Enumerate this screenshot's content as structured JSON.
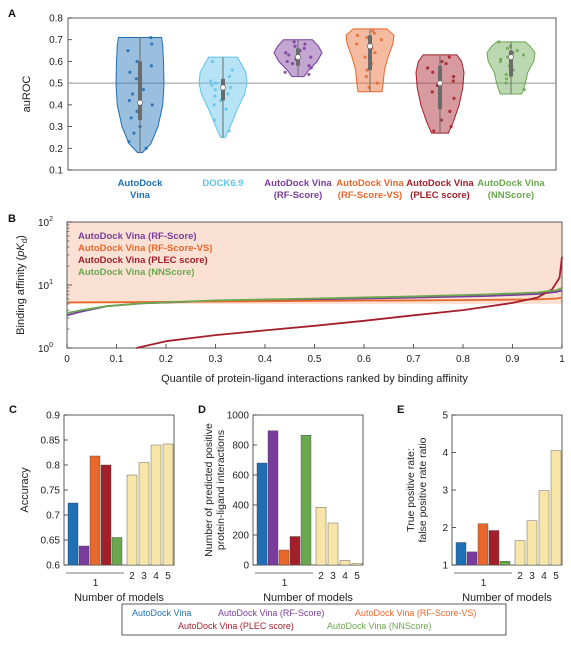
{
  "colors": {
    "vina": "#1f6fb5",
    "dock": "#5ec4ea",
    "rf": "#7a3c9c",
    "rfvs": "#e8682c",
    "plec": "#a31f2a",
    "nn": "#6aa84f",
    "combo": "#f8e6a8",
    "band": "#fbe1d3",
    "grid": "#999999",
    "axis": "#333333"
  },
  "chart_data": [
    {
      "panel": "A",
      "type": "violin",
      "ylabel": "auROC",
      "ylim": [
        0.1,
        0.8
      ],
      "yticks": [
        0.1,
        0.2,
        0.3,
        0.4,
        0.5,
        0.6,
        0.7,
        0.8
      ],
      "reference_line": 0.5,
      "categories": [
        {
          "line1": "AutoDock",
          "line2": "Vina",
          "color_key": "vina",
          "min": 0.18,
          "max": 0.71,
          "median": 0.41,
          "q1": 0.33,
          "q3": 0.6,
          "profile": [
            [
              0.18,
              0.1
            ],
            [
              0.22,
              0.45
            ],
            [
              0.3,
              0.75
            ],
            [
              0.4,
              0.95
            ],
            [
              0.5,
              1.0
            ],
            [
              0.6,
              0.98
            ],
            [
              0.67,
              0.95
            ],
            [
              0.71,
              0.9
            ]
          ],
          "points": [
            0.71,
            0.68,
            0.65,
            0.6,
            0.58,
            0.55,
            0.52,
            0.5,
            0.47,
            0.45,
            0.42,
            0.4,
            0.37,
            0.34,
            0.3,
            0.27,
            0.23,
            0.2
          ]
        },
        {
          "line1": "DOCK6.9",
          "line2": "",
          "color_key": "dock",
          "min": 0.25,
          "max": 0.62,
          "median": 0.48,
          "q1": 0.42,
          "q3": 0.52,
          "profile": [
            [
              0.25,
              0.1
            ],
            [
              0.3,
              0.3
            ],
            [
              0.38,
              0.6
            ],
            [
              0.45,
              0.9
            ],
            [
              0.5,
              1.0
            ],
            [
              0.55,
              0.95
            ],
            [
              0.6,
              0.7
            ],
            [
              0.62,
              0.6
            ]
          ],
          "points": [
            0.6,
            0.56,
            0.53,
            0.51,
            0.5,
            0.49,
            0.48,
            0.47,
            0.46,
            0.45,
            0.44,
            0.42,
            0.4,
            0.38,
            0.33,
            0.28
          ]
        },
        {
          "line1": "AutoDock Vina",
          "line2": "(RF-Score)",
          "color_key": "rf",
          "min": 0.53,
          "max": 0.7,
          "median": 0.62,
          "q1": 0.58,
          "q3": 0.66,
          "profile": [
            [
              0.53,
              0.25
            ],
            [
              0.56,
              0.45
            ],
            [
              0.6,
              0.8
            ],
            [
              0.64,
              1.0
            ],
            [
              0.67,
              0.85
            ],
            [
              0.7,
              0.6
            ]
          ],
          "points": [
            0.69,
            0.68,
            0.67,
            0.66,
            0.65,
            0.64,
            0.63,
            0.62,
            0.61,
            0.6,
            0.59,
            0.58,
            0.57,
            0.55,
            0.54
          ]
        },
        {
          "line1": "AutoDock Vina",
          "line2": "(RF-Score-VS)",
          "color_key": "rfvs",
          "min": 0.46,
          "max": 0.75,
          "median": 0.67,
          "q1": 0.56,
          "q3": 0.72,
          "profile": [
            [
              0.46,
              0.5
            ],
            [
              0.5,
              0.55
            ],
            [
              0.56,
              0.6
            ],
            [
              0.62,
              0.75
            ],
            [
              0.68,
              0.95
            ],
            [
              0.72,
              1.0
            ],
            [
              0.75,
              0.7
            ]
          ],
          "points": [
            0.74,
            0.73,
            0.72,
            0.71,
            0.7,
            0.68,
            0.66,
            0.64,
            0.62,
            0.59,
            0.56,
            0.53,
            0.5,
            0.48
          ]
        },
        {
          "line1": "AutoDock Vina",
          "line2": "(PLEC score)",
          "color_key": "plec",
          "min": 0.27,
          "max": 0.63,
          "median": 0.5,
          "q1": 0.38,
          "q3": 0.58,
          "profile": [
            [
              0.27,
              0.35
            ],
            [
              0.32,
              0.55
            ],
            [
              0.4,
              0.8
            ],
            [
              0.48,
              0.95
            ],
            [
              0.55,
              1.0
            ],
            [
              0.6,
              0.9
            ],
            [
              0.63,
              0.7
            ]
          ],
          "points": [
            0.62,
            0.6,
            0.59,
            0.57,
            0.55,
            0.53,
            0.51,
            0.49,
            0.46,
            0.43,
            0.4,
            0.37,
            0.33,
            0.3,
            0.28
          ]
        },
        {
          "line1": "AutoDock Vina",
          "line2": "(NNScore)",
          "color_key": "nn",
          "min": 0.45,
          "max": 0.69,
          "median": 0.62,
          "q1": 0.53,
          "q3": 0.65,
          "profile": [
            [
              0.45,
              0.45
            ],
            [
              0.5,
              0.6
            ],
            [
              0.55,
              0.7
            ],
            [
              0.6,
              0.95
            ],
            [
              0.64,
              1.0
            ],
            [
              0.67,
              0.8
            ],
            [
              0.69,
              0.6
            ]
          ],
          "points": [
            0.69,
            0.67,
            0.66,
            0.65,
            0.64,
            0.63,
            0.62,
            0.61,
            0.6,
            0.58,
            0.56,
            0.54,
            0.52,
            0.5,
            0.47
          ]
        }
      ]
    },
    {
      "panel": "B",
      "type": "line",
      "ylabel_pre": "Binding affinity (",
      "ylabel_p": "pK",
      "ylabel_sub": "d",
      "ylabel_post": ")",
      "xlabel": "Quantile of protein-ligand interactions ranked by binding affinity",
      "xlim": [
        0,
        1
      ],
      "xticks": [
        "0",
        "0.1",
        "0.2",
        "0.3",
        "0.4",
        "0.5",
        "0.6",
        "0.7",
        "0.8",
        "0.9",
        "1"
      ],
      "yscale": "log",
      "ylim": [
        1,
        100
      ],
      "yticks": [
        {
          "base": "10",
          "exp": "0",
          "value": 1
        },
        {
          "base": "10",
          "exp": "1",
          "value": 10
        },
        {
          "base": "10",
          "exp": "2",
          "value": 100
        }
      ],
      "shaded_band": [
        5,
        100
      ],
      "legend_position": "top-left",
      "series": [
        {
          "name": "AutoDock Vina (RF-Score)",
          "color_key": "rf",
          "points": [
            [
              0,
              3.3
            ],
            [
              0.03,
              3.8
            ],
            [
              0.08,
              4.6
            ],
            [
              0.15,
              5.1
            ],
            [
              0.3,
              5.6
            ],
            [
              0.5,
              5.9
            ],
            [
              0.7,
              6.3
            ],
            [
              0.85,
              6.7
            ],
            [
              0.95,
              7.2
            ],
            [
              0.99,
              7.8
            ],
            [
              1,
              8.2
            ]
          ]
        },
        {
          "name": "AutoDock Vina (RF-Score-VS)",
          "color_key": "rfvs",
          "points": [
            [
              0,
              5.3
            ],
            [
              0.2,
              5.4
            ],
            [
              0.5,
              5.6
            ],
            [
              0.8,
              5.75
            ],
            [
              0.95,
              5.9
            ],
            [
              0.99,
              6.1
            ],
            [
              1,
              6.3
            ]
          ]
        },
        {
          "name": "AutoDock Vina (PLEC score)",
          "color_key": "plec",
          "points": [
            [
              0.14,
              1.0
            ],
            [
              0.2,
              1.28
            ],
            [
              0.3,
              1.6
            ],
            [
              0.4,
              1.9
            ],
            [
              0.5,
              2.25
            ],
            [
              0.6,
              2.7
            ],
            [
              0.7,
              3.3
            ],
            [
              0.8,
              4.0
            ],
            [
              0.9,
              5.2
            ],
            [
              0.95,
              6.3
            ],
            [
              0.98,
              8.5
            ],
            [
              0.995,
              13
            ],
            [
              1,
              28
            ]
          ]
        },
        {
          "name": "AutoDock Vina (NNScore)",
          "color_key": "nn",
          "points": [
            [
              0,
              3.6
            ],
            [
              0.03,
              4.0
            ],
            [
              0.08,
              4.6
            ],
            [
              0.15,
              5.1
            ],
            [
              0.3,
              5.7
            ],
            [
              0.5,
              6.1
            ],
            [
              0.7,
              6.6
            ],
            [
              0.85,
              7.1
            ],
            [
              0.95,
              7.6
            ],
            [
              0.99,
              8.3
            ],
            [
              1,
              9.0
            ]
          ]
        }
      ]
    },
    {
      "panel": "C",
      "type": "bar",
      "ylabel": "Accuracy",
      "xlabel": "Number of models",
      "ylim": [
        0.6,
        0.9
      ],
      "yticks": [
        "0.6",
        "0.65",
        "0.7",
        "0.75",
        "0.8",
        "0.85",
        "0.9"
      ],
      "group_label": "1",
      "single_values": [
        0.724,
        0.638,
        0.818,
        0.8,
        0.655
      ],
      "combo_categories": [
        "2",
        "3",
        "4",
        "5"
      ],
      "combo_values": [
        0.78,
        0.805,
        0.84,
        0.842
      ]
    },
    {
      "panel": "D",
      "type": "bar",
      "ylabel_line1": "Number of predicted positive",
      "ylabel_line2": "protein-ligand interactions",
      "xlabel": "Number of models",
      "ylim": [
        0,
        1000
      ],
      "yticks": [
        "0",
        "200",
        "400",
        "600",
        "800",
        "1000"
      ],
      "group_label": "1",
      "single_values": [
        680,
        895,
        100,
        190,
        865
      ],
      "combo_categories": [
        "2",
        "3",
        "4",
        "5"
      ],
      "combo_values": [
        385,
        280,
        30,
        10
      ]
    },
    {
      "panel": "E",
      "type": "bar",
      "ylabel_line1": "True positive rate:",
      "ylabel_line2": "false positive rate ratio",
      "xlabel": "Number of models",
      "ylim": [
        1,
        5
      ],
      "yticks": [
        "1",
        "2",
        "3",
        "4",
        "5"
      ],
      "group_label": "1",
      "single_values": [
        1.6,
        1.35,
        2.1,
        1.92,
        1.1
      ],
      "combo_categories": [
        "2",
        "3",
        "4",
        "5"
      ],
      "combo_values": [
        1.65,
        2.18,
        2.98,
        4.05
      ]
    }
  ],
  "bottom_legend": [
    {
      "label": "AutoDock Vina",
      "color_key": "vina"
    },
    {
      "label": "AutoDock Vina (RF-Score)",
      "color_key": "rf"
    },
    {
      "label": "AutoDock Vina (RF-Score-VS)",
      "color_key": "rfvs"
    },
    {
      "label": "AutoDock Vina (PLEC score)",
      "color_key": "plec"
    },
    {
      "label": "AutoDock Vina (NNScore)",
      "color_key": "nn"
    }
  ],
  "bar_order": [
    "vina",
    "rf",
    "rfvs",
    "plec",
    "nn"
  ]
}
